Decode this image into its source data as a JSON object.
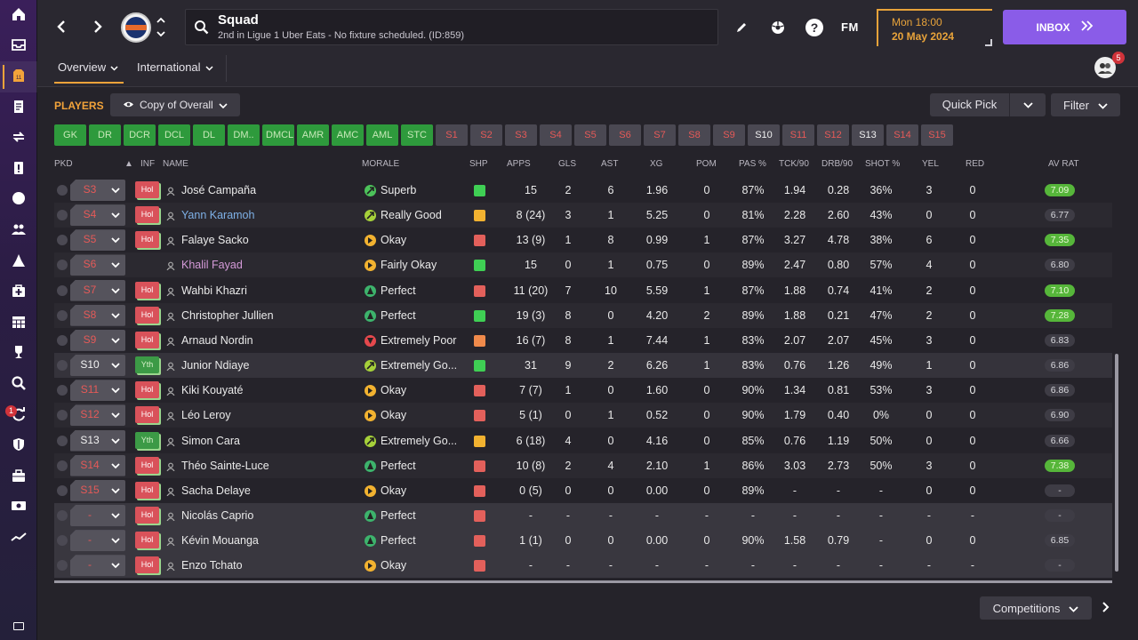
{
  "rail": {
    "items": [
      {
        "icon": "home-icon"
      },
      {
        "icon": "inbox-tray-icon"
      },
      {
        "icon": "squad-shirt-icon",
        "active": true
      },
      {
        "icon": "notes-icon"
      },
      {
        "icon": "transfer-icon"
      },
      {
        "icon": "tactics-icon"
      },
      {
        "icon": "ball-icon"
      },
      {
        "icon": "staff-icon"
      },
      {
        "icon": "training-icon"
      },
      {
        "icon": "medical-icon"
      },
      {
        "icon": "schedule-icon"
      },
      {
        "icon": "trophy-icon"
      },
      {
        "icon": "search-icon"
      },
      {
        "icon": "sync-icon",
        "badge": "1"
      },
      {
        "icon": "club-shield-icon"
      },
      {
        "icon": "briefcase-icon"
      },
      {
        "icon": "finances-icon"
      },
      {
        "icon": "trend-icon"
      }
    ]
  },
  "header": {
    "title": "Squad",
    "subtitle": "2nd in Ligue 1 Uber Eats - No fixture scheduled. (ID:859)",
    "fm_label": "FM",
    "help_label": "?",
    "date_line1": "Mon 18:00",
    "date_line2": "20 May 2024",
    "inbox_label": "INBOX"
  },
  "subnav": {
    "tabs": [
      {
        "label": "Overview"
      },
      {
        "label": "International"
      }
    ],
    "notification_count": "5"
  },
  "toolbar": {
    "players_label": "PLAYERS",
    "view_label": "Copy of Overall",
    "quick_pick_label": "Quick Pick",
    "filter_label": "Filter",
    "competitions_label": "Competitions"
  },
  "positions": [
    {
      "label": "GK",
      "style": "green"
    },
    {
      "label": "DR",
      "style": "green"
    },
    {
      "label": "DCR",
      "style": "green"
    },
    {
      "label": "DCL",
      "style": "green"
    },
    {
      "label": "DL",
      "style": "green"
    },
    {
      "label": "DM..",
      "style": "green"
    },
    {
      "label": "DMCL",
      "style": "green"
    },
    {
      "label": "AMR",
      "style": "green"
    },
    {
      "label": "AMC",
      "style": "green"
    },
    {
      "label": "AML",
      "style": "green"
    },
    {
      "label": "STC",
      "style": "green"
    },
    {
      "label": "S1",
      "style": "grey"
    },
    {
      "label": "S2",
      "style": "grey"
    },
    {
      "label": "S3",
      "style": "grey"
    },
    {
      "label": "S4",
      "style": "grey"
    },
    {
      "label": "S5",
      "style": "grey"
    },
    {
      "label": "S6",
      "style": "grey"
    },
    {
      "label": "S7",
      "style": "grey"
    },
    {
      "label": "S8",
      "style": "grey"
    },
    {
      "label": "S9",
      "style": "grey"
    },
    {
      "label": "S10",
      "style": "white"
    },
    {
      "label": "S11",
      "style": "grey"
    },
    {
      "label": "S12",
      "style": "grey"
    },
    {
      "label": "S13",
      "style": "white"
    },
    {
      "label": "S14",
      "style": "grey"
    },
    {
      "label": "S15",
      "style": "grey"
    }
  ],
  "columns": {
    "pkd": "PKD",
    "inf": "INF",
    "name": "NAME",
    "morale": "MORALE",
    "shp": "SHP",
    "apps": "APPS",
    "gls": "GLS",
    "ast": "AST",
    "xg": "XG",
    "pom": "POM",
    "pas": "PAS %",
    "tck": "TCK/90",
    "drb": "DRB/90",
    "shot": "SHOT %",
    "yel": "YEL",
    "red": "RED",
    "avrat": "AV RAT"
  },
  "colors": {
    "accent": "#f2a33a",
    "inbox": "#8a5ce8",
    "morale": {
      "superb": "#4cc25a",
      "good": "#a6d13a",
      "okay": "#f2b230",
      "perfect": "#3db36c",
      "poor": "#e5484d"
    },
    "shape": {
      "up": "#3fcf54",
      "flat": "#f2b230",
      "down": "#e3605b",
      "peak": "#f08a4b"
    }
  },
  "players": [
    {
      "pkd": "S3",
      "pkd_style": "red",
      "inf": "Hol",
      "name": "José Campaña",
      "name_style": "",
      "morale": "Superb",
      "morale_type": "superb",
      "shp": "up",
      "apps": "15",
      "gls": "2",
      "ast": "6",
      "xg": "1.96",
      "pom": "0",
      "pas": "87%",
      "tck": "1.94",
      "drb": "0.28",
      "shot": "36%",
      "yel": "3",
      "red": "0",
      "avrat": "7.09",
      "good": true
    },
    {
      "pkd": "S4",
      "pkd_style": "red",
      "inf": "Hol",
      "name": "Yann Karamoh",
      "name_style": "link",
      "morale": "Really Good",
      "morale_type": "good",
      "shp": "flat",
      "apps": "8 (24)",
      "gls": "3",
      "ast": "1",
      "xg": "5.25",
      "pom": "0",
      "pas": "81%",
      "tck": "2.28",
      "drb": "2.60",
      "shot": "43%",
      "yel": "0",
      "red": "0",
      "avrat": "6.77",
      "good": false
    },
    {
      "pkd": "S5",
      "pkd_style": "red",
      "inf": "Hol",
      "name": "Falaye Sacko",
      "name_style": "",
      "morale": "Okay",
      "morale_type": "okay",
      "shp": "down",
      "apps": "13 (9)",
      "gls": "1",
      "ast": "8",
      "xg": "0.99",
      "pom": "1",
      "pas": "87%",
      "tck": "3.27",
      "drb": "4.78",
      "shot": "38%",
      "yel": "6",
      "red": "0",
      "avrat": "7.35",
      "good": true
    },
    {
      "pkd": "S6",
      "pkd_style": "red",
      "inf": "",
      "name": "Khalil Fayad",
      "name_style": "loan",
      "morale": "Fairly Okay",
      "morale_type": "okay",
      "shp": "up",
      "apps": "15",
      "gls": "0",
      "ast": "1",
      "xg": "0.75",
      "pom": "0",
      "pas": "89%",
      "tck": "2.47",
      "drb": "0.80",
      "shot": "57%",
      "yel": "4",
      "red": "0",
      "avrat": "6.80",
      "good": false
    },
    {
      "pkd": "S7",
      "pkd_style": "red",
      "inf": "Hol",
      "name": "Wahbi Khazri",
      "name_style": "",
      "morale": "Perfect",
      "morale_type": "perfect",
      "shp": "down",
      "apps": "11 (20)",
      "gls": "7",
      "ast": "10",
      "xg": "5.59",
      "pom": "1",
      "pas": "87%",
      "tck": "1.88",
      "drb": "0.74",
      "shot": "41%",
      "yel": "2",
      "red": "0",
      "avrat": "7.10",
      "good": true
    },
    {
      "pkd": "S8",
      "pkd_style": "red",
      "inf": "Hol",
      "name": "Christopher Jullien",
      "name_style": "",
      "morale": "Perfect",
      "morale_type": "perfect",
      "shp": "up",
      "apps": "19 (3)",
      "gls": "8",
      "ast": "0",
      "xg": "4.20",
      "pom": "2",
      "pas": "89%",
      "tck": "1.88",
      "drb": "0.21",
      "shot": "47%",
      "yel": "2",
      "red": "0",
      "avrat": "7.28",
      "good": true
    },
    {
      "pkd": "S9",
      "pkd_style": "red",
      "inf": "Hol",
      "name": "Arnaud Nordin",
      "name_style": "",
      "morale": "Extremely Poor",
      "morale_type": "poor",
      "shp": "peak",
      "apps": "16 (7)",
      "gls": "8",
      "ast": "1",
      "xg": "7.44",
      "pom": "1",
      "pas": "83%",
      "tck": "2.07",
      "drb": "2.07",
      "shot": "45%",
      "yel": "3",
      "red": "0",
      "avrat": "6.83",
      "good": false
    },
    {
      "pkd": "S10",
      "pkd_style": "white",
      "inf": "Yth",
      "name": "Junior Ndiaye",
      "name_style": "",
      "morale": "Extremely Go...",
      "morale_type": "good",
      "shp": "up",
      "apps": "31",
      "gls": "9",
      "ast": "2",
      "xg": "6.26",
      "pom": "1",
      "pas": "83%",
      "tck": "0.76",
      "drb": "1.26",
      "shot": "49%",
      "yel": "1",
      "red": "0",
      "avrat": "6.86",
      "good": false
    },
    {
      "pkd": "S11",
      "pkd_style": "red",
      "inf": "Hol",
      "name": "Kiki Kouyaté",
      "name_style": "",
      "morale": "Okay",
      "morale_type": "okay",
      "shp": "down",
      "apps": "7 (7)",
      "gls": "1",
      "ast": "0",
      "xg": "1.60",
      "pom": "0",
      "pas": "90%",
      "tck": "1.34",
      "drb": "0.81",
      "shot": "53%",
      "yel": "3",
      "red": "0",
      "avrat": "6.86",
      "good": false
    },
    {
      "pkd": "S12",
      "pkd_style": "red",
      "inf": "Hol",
      "name": "Léo Leroy",
      "name_style": "",
      "morale": "Okay",
      "morale_type": "okay",
      "shp": "down",
      "apps": "5 (1)",
      "gls": "0",
      "ast": "1",
      "xg": "0.52",
      "pom": "0",
      "pas": "90%",
      "tck": "1.79",
      "drb": "0.40",
      "shot": "0%",
      "yel": "0",
      "red": "0",
      "avrat": "6.90",
      "good": false
    },
    {
      "pkd": "S13",
      "pkd_style": "white",
      "inf": "Yth",
      "name": "Simon Cara",
      "name_style": "",
      "morale": "Extremely Go...",
      "morale_type": "good",
      "shp": "flat",
      "apps": "6 (18)",
      "gls": "4",
      "ast": "0",
      "xg": "4.16",
      "pom": "0",
      "pas": "85%",
      "tck": "0.76",
      "drb": "1.19",
      "shot": "50%",
      "yel": "0",
      "red": "0",
      "avrat": "6.66",
      "good": false
    },
    {
      "pkd": "S14",
      "pkd_style": "red",
      "inf": "Hol",
      "name": "Théo Sainte-Luce",
      "name_style": "",
      "morale": "Perfect",
      "morale_type": "perfect",
      "shp": "down",
      "apps": "10 (8)",
      "gls": "2",
      "ast": "4",
      "xg": "2.10",
      "pom": "1",
      "pas": "86%",
      "tck": "3.03",
      "drb": "2.73",
      "shot": "50%",
      "yel": "3",
      "red": "0",
      "avrat": "7.38",
      "good": true
    },
    {
      "pkd": "S15",
      "pkd_style": "red",
      "inf": "Hol",
      "name": "Sacha Delaye",
      "name_style": "",
      "morale": "Okay",
      "morale_type": "okay",
      "shp": "down",
      "apps": "0 (5)",
      "gls": "0",
      "ast": "0",
      "xg": "0.00",
      "pom": "0",
      "pas": "89%",
      "tck": "-",
      "drb": "-",
      "shot": "-",
      "yel": "0",
      "red": "0",
      "avrat": "-",
      "good": false
    },
    {
      "pkd": "-",
      "pkd_style": "red",
      "inf": "Hol",
      "name": "Nicolás Caprio",
      "name_style": "",
      "morale": "Perfect",
      "morale_type": "perfect",
      "shp": "down",
      "apps": "-",
      "gls": "-",
      "ast": "-",
      "xg": "-",
      "pom": "-",
      "pas": "-",
      "tck": "-",
      "drb": "-",
      "shot": "-",
      "yel": "-",
      "red": "-",
      "avrat": "-",
      "good": false
    },
    {
      "pkd": "-",
      "pkd_style": "red",
      "inf": "Hol",
      "name": "Kévin Mouanga",
      "name_style": "",
      "morale": "Perfect",
      "morale_type": "perfect",
      "shp": "down",
      "apps": "1 (1)",
      "gls": "0",
      "ast": "0",
      "xg": "0.00",
      "pom": "0",
      "pas": "90%",
      "tck": "1.58",
      "drb": "0.79",
      "shot": "-",
      "yel": "0",
      "red": "0",
      "avrat": "6.85",
      "good": false
    },
    {
      "pkd": "-",
      "pkd_style": "red",
      "inf": "Hol",
      "name": "Enzo Tchato",
      "name_style": "",
      "morale": "Okay",
      "morale_type": "okay",
      "shp": "down",
      "apps": "-",
      "gls": "-",
      "ast": "-",
      "xg": "-",
      "pom": "-",
      "pas": "-",
      "tck": "-",
      "drb": "-",
      "shot": "-",
      "yel": "-",
      "red": "-",
      "avrat": "-",
      "good": false
    }
  ]
}
